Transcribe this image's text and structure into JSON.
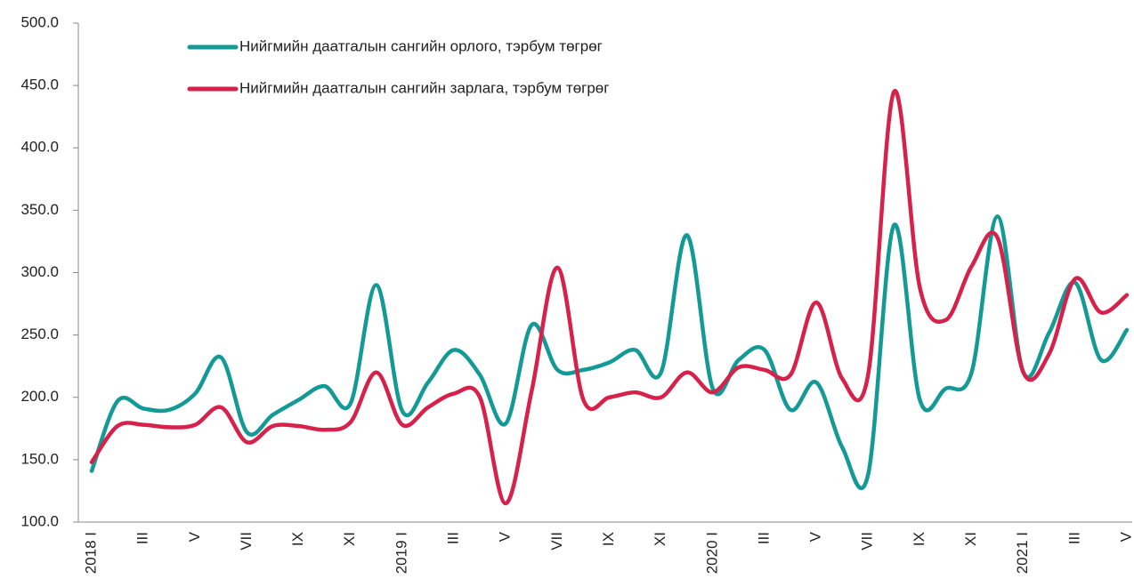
{
  "chart_data": {
    "type": "line",
    "categories": [
      "2018 I",
      null,
      "III",
      null,
      "V",
      null,
      "VII",
      null,
      "IX",
      null,
      "XI",
      null,
      "2019 I",
      null,
      "III",
      null,
      "V",
      null,
      "VII",
      null,
      "IX",
      null,
      "XI",
      null,
      "2020 I",
      null,
      "III",
      null,
      "V",
      null,
      "VII",
      null,
      "IX",
      null,
      "XI",
      null,
      "2021 I",
      null,
      "III",
      null,
      "V"
    ],
    "series": [
      {
        "name": "Нийгмийн даатгалын сангийн орлого, тэрбум төгрөг",
        "color": "#139a96",
        "values": [
          141,
          197,
          191,
          190,
          203,
          232,
          172,
          186,
          198,
          209,
          195,
          290,
          189,
          212,
          238,
          218,
          179,
          258,
          222,
          222,
          228,
          238,
          220,
          330,
          207,
          230,
          238,
          190,
          212,
          160,
          138,
          338,
          198,
          207,
          220,
          345,
          220,
          252,
          292,
          230,
          254
        ]
      },
      {
        "name": "Нийгмийн даатгалын сангийн зарлага, тэрбум төгрөг",
        "color": "#d6224a",
        "values": [
          148,
          177,
          178,
          176,
          178,
          192,
          164,
          177,
          177,
          174,
          180,
          220,
          178,
          192,
          203,
          200,
          115,
          205,
          304,
          198,
          200,
          204,
          200,
          220,
          204,
          224,
          222,
          218,
          276,
          215,
          218,
          445,
          288,
          262,
          305,
          328,
          220,
          235,
          295,
          268,
          282
        ]
      }
    ],
    "ylim": [
      100,
      500
    ],
    "yticks": [
      {
        "value": 100,
        "label": "100.0"
      },
      {
        "value": 150,
        "label": "150.0"
      },
      {
        "value": 200,
        "label": "200.0"
      },
      {
        "value": 250,
        "label": "250.0"
      },
      {
        "value": 300,
        "label": "300.0"
      },
      {
        "value": 350,
        "label": "350.0"
      },
      {
        "value": 400,
        "label": "400.0"
      },
      {
        "value": 450,
        "label": "450.0"
      },
      {
        "value": 500,
        "label": "500.0"
      }
    ],
    "grid": false,
    "legend": "top"
  }
}
